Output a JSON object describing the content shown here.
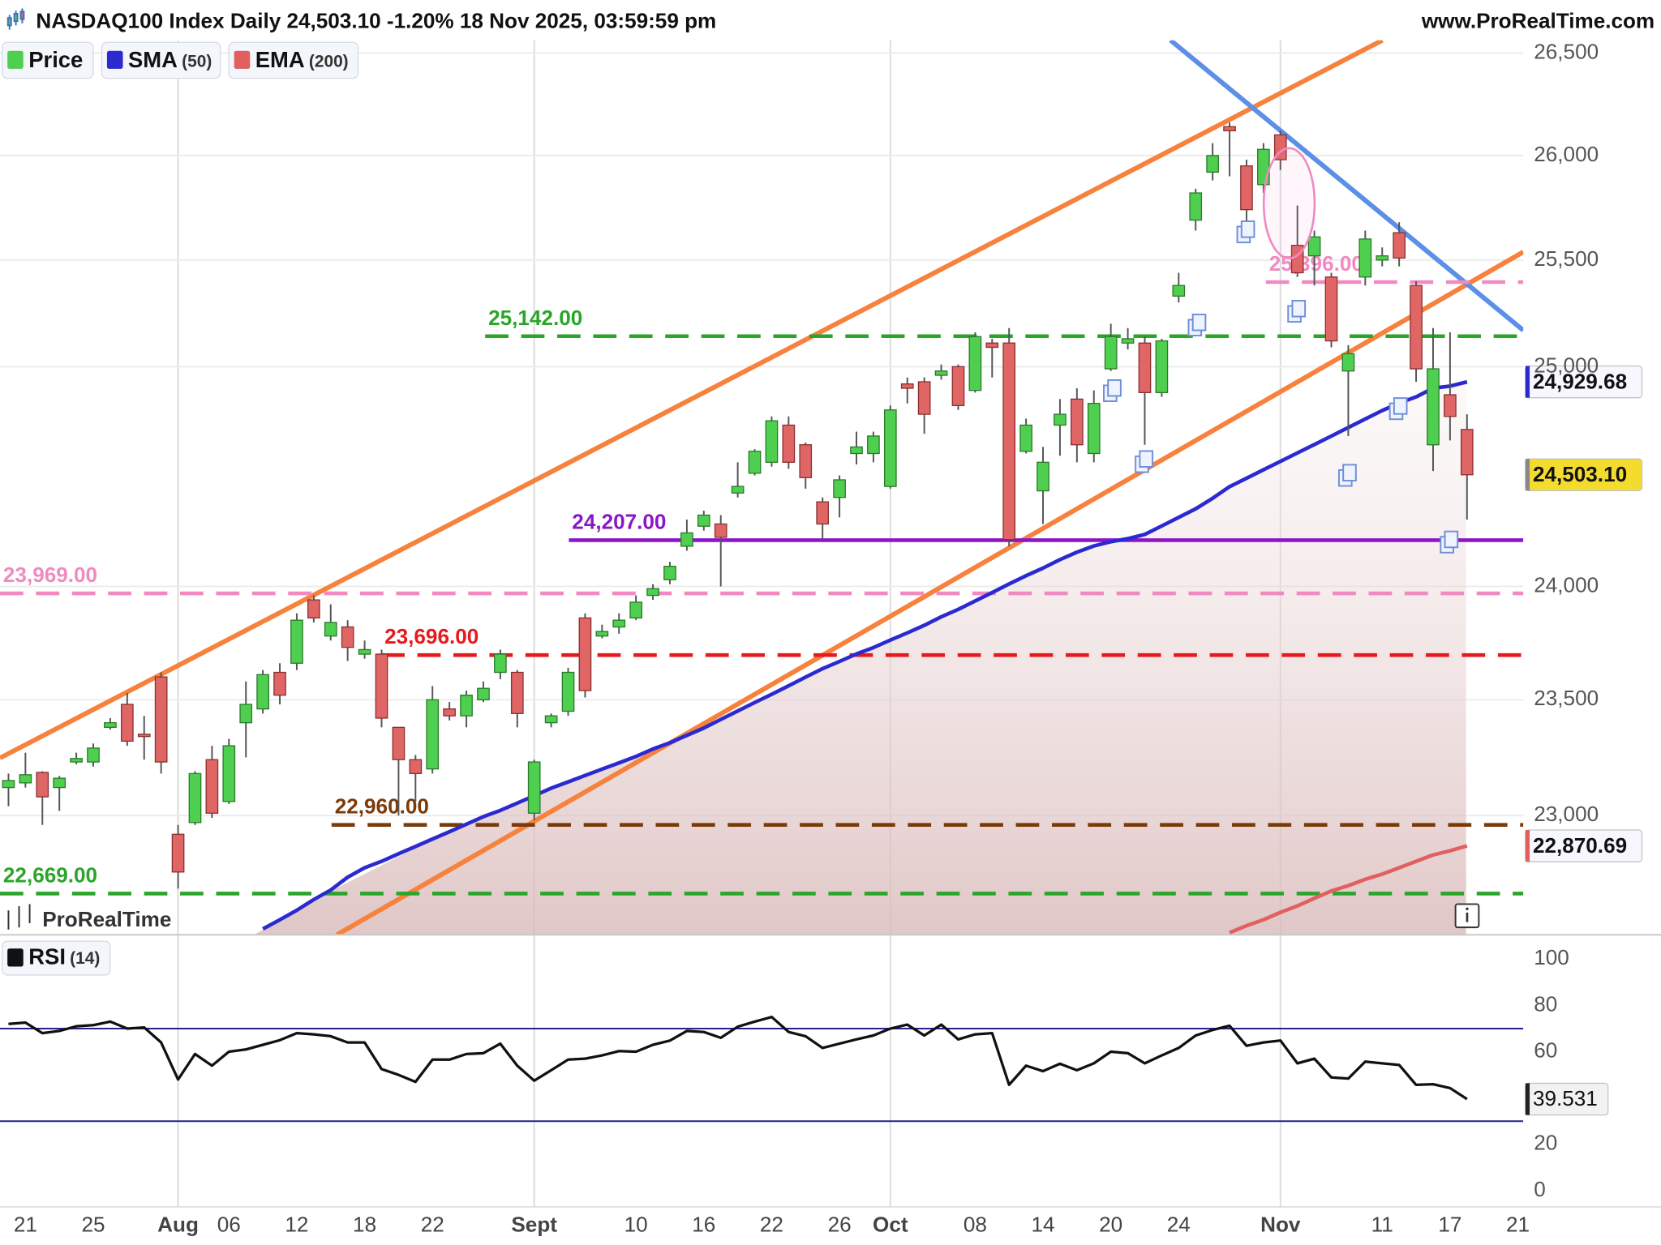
{
  "chart_data": [
    {
      "type": "candlestick",
      "title": "NASDAQ100 Index Daily 24,503.10 -1.20% 18 Nov 2025, 03:59:59 pm",
      "source": "www.ProRealTime.com",
      "watermark": "ProRealTime",
      "log": true,
      "grid": true,
      "x_grid": true,
      "categories": [
        null,
        "21",
        null,
        null,
        null,
        "25",
        null,
        null,
        null,
        null,
        "Aug",
        null,
        null,
        "06",
        null,
        null,
        null,
        "12",
        null,
        null,
        null,
        "18",
        null,
        null,
        null,
        "22",
        null,
        null,
        null,
        null,
        null,
        "Sept",
        null,
        null,
        null,
        null,
        null,
        "10",
        null,
        null,
        null,
        "16",
        null,
        null,
        null,
        "22",
        null,
        null,
        null,
        "26",
        null,
        null,
        "Oct",
        null,
        null,
        null,
        null,
        "08",
        null,
        null,
        null,
        "14",
        null,
        null,
        null,
        "20",
        null,
        null,
        null,
        "24",
        null,
        null,
        null,
        null,
        null,
        "Nov",
        null,
        null,
        null,
        null,
        null,
        "11",
        null,
        null,
        null,
        "17",
        null,
        null,
        null,
        "21"
      ],
      "ylim": [
        22496,
        26563
      ],
      "yticks": [
        {
          "value": 23000,
          "label": "23,000"
        },
        {
          "value": 23500,
          "label": "23,500"
        },
        {
          "value": 24000,
          "label": "24,000"
        },
        {
          "value": 25000,
          "label": "25,000"
        },
        {
          "value": 25500,
          "label": "25,500"
        },
        {
          "value": 26000,
          "label": "26,000"
        },
        {
          "value": 26500,
          "label": "26,500"
        }
      ],
      "levels": [
        {
          "value": 25142,
          "label": "25,142.00",
          "color": "#2aa52a",
          "style": "dashed"
        },
        {
          "value": 24207,
          "label": "24,207.00",
          "color": "#8a16c8",
          "style": "solid"
        },
        {
          "value": 23969,
          "label": "23,969.00",
          "color": "#f08ac0",
          "style": "dashed"
        },
        {
          "value": 23696,
          "label": "23,696.00",
          "color": "#e8191c",
          "style": "dashed"
        },
        {
          "value": 22960,
          "label": "22,960.00",
          "color": "#7a3a0a",
          "style": "dashed"
        },
        {
          "value": 22669,
          "label": "22,669.00",
          "color": "#2aa52a",
          "style": "dashed"
        },
        {
          "value": 25396,
          "label": "25,396.00",
          "color": "#f08ac0",
          "style": "dashed"
        }
      ],
      "series": [
        {
          "name": "Price",
          "type": "candlestick",
          "up_color": "#4fcf4f",
          "down_color": "#e06666",
          "last_label": "24,503.10",
          "open": [
            23120,
            23140,
            23185,
            23120,
            23230,
            23230,
            23380,
            23480,
            23350,
            23600,
            22920,
            22970,
            23240,
            23060,
            23400,
            23460,
            23620,
            23660,
            23940,
            23780,
            23820,
            23700,
            23700,
            23380,
            23240,
            23200,
            23460,
            23430,
            23500,
            23620,
            23620,
            23010,
            23400,
            23450,
            23860,
            23780,
            23820,
            23860,
            23960,
            24030,
            24180,
            24270,
            24280,
            24420,
            24510,
            24560,
            24730,
            24640,
            24380,
            24400,
            24600,
            24600,
            24450,
            24920,
            24930,
            24960,
            25000,
            24890,
            25110,
            25110,
            24610,
            24430,
            24730,
            24850,
            24600,
            24990,
            25110,
            25110,
            24880,
            25330,
            25690,
            25920,
            26140,
            25950,
            25860,
            26100,
            25570,
            25520,
            25420,
            24980,
            25420,
            25500,
            25630,
            25380,
            24640,
            24870,
            24710,
            null,
            null,
            null
          ],
          "high": [
            23180,
            23270,
            23190,
            23170,
            23270,
            23310,
            23420,
            23530,
            23430,
            23620,
            22960,
            23190,
            23300,
            23330,
            23580,
            23630,
            23660,
            23880,
            23960,
            23920,
            23850,
            23760,
            23720,
            23380,
            23260,
            23560,
            23490,
            23540,
            23580,
            23720,
            23630,
            23240,
            23440,
            23640,
            23880,
            23830,
            23880,
            23960,
            24010,
            24110,
            24300,
            24340,
            24320,
            24560,
            24620,
            24770,
            24770,
            24650,
            24400,
            24500,
            24700,
            24700,
            24820,
            24950,
            24950,
            25010,
            25010,
            25160,
            25130,
            25180,
            24760,
            24630,
            24850,
            24900,
            24890,
            25200,
            25180,
            25140,
            25130,
            25440,
            25840,
            26060,
            26160,
            25980,
            26060,
            26120,
            25760,
            25640,
            25440,
            25100,
            25640,
            25560,
            25680,
            25400,
            25180,
            25160,
            24780,
            null,
            null,
            null
          ],
          "low": [
            23040,
            23120,
            22960,
            23020,
            23220,
            23210,
            23370,
            23300,
            23240,
            23180,
            22690,
            22960,
            22990,
            23050,
            23250,
            23440,
            23480,
            23630,
            23840,
            23760,
            23670,
            23680,
            23380,
            23000,
            23060,
            23180,
            23410,
            23380,
            23490,
            23590,
            23380,
            22980,
            23380,
            23430,
            23510,
            23770,
            23790,
            23850,
            23940,
            24010,
            24160,
            24250,
            24000,
            24400,
            24500,
            24540,
            24530,
            24440,
            24210,
            24310,
            24550,
            24560,
            24440,
            24830,
            24690,
            24940,
            24800,
            24880,
            24950,
            24180,
            24600,
            24280,
            24590,
            24560,
            24560,
            24980,
            25080,
            24640,
            24860,
            25300,
            25640,
            25880,
            25900,
            25650,
            25820,
            25930,
            25420,
            25380,
            25090,
            24680,
            25380,
            25470,
            25470,
            24930,
            24520,
            24660,
            24300,
            null,
            null,
            null
          ],
          "close": [
            23150,
            23175,
            23080,
            23160,
            23245,
            23290,
            23400,
            23320,
            23340,
            23230,
            22760,
            23180,
            23010,
            23300,
            23480,
            23610,
            23520,
            23850,
            23860,
            23840,
            23730,
            23720,
            23420,
            23240,
            23180,
            23500,
            23430,
            23520,
            23550,
            23700,
            23440,
            23230,
            23430,
            23620,
            23540,
            23800,
            23850,
            23930,
            23990,
            24090,
            24240,
            24320,
            24220,
            24450,
            24610,
            24750,
            24560,
            24490,
            24280,
            24480,
            24630,
            24680,
            24800,
            24900,
            24780,
            24980,
            24820,
            25140,
            25090,
            24210,
            24730,
            24560,
            24780,
            24640,
            24830,
            25140,
            25130,
            24880,
            25120,
            25380,
            25820,
            26000,
            26120,
            25740,
            26030,
            25980,
            25440,
            25610,
            25120,
            25060,
            25600,
            25520,
            25510,
            24990,
            24990,
            24770,
            24503.1,
            null,
            null,
            null
          ]
        },
        {
          "name": "SMA",
          "period": "(50)",
          "type": "line",
          "color": "#2a2ad0",
          "last_label": "24,929.68",
          "values": [
            null,
            null,
            null,
            null,
            null,
            null,
            null,
            null,
            null,
            null,
            null,
            null,
            null,
            null,
            null,
            22521,
            22559,
            22599,
            22644,
            22684,
            22738,
            22778,
            22805,
            22837,
            22868,
            22900,
            22931,
            22963,
            22995,
            23022,
            23053,
            23085,
            23117,
            23144,
            23172,
            23199,
            23226,
            23254,
            23286,
            23313,
            23345,
            23377,
            23414,
            23451,
            23488,
            23524,
            23561,
            23599,
            23636,
            23668,
            23701,
            23729,
            23762,
            23794,
            23827,
            23865,
            23898,
            23935,
            23973,
            24011,
            24048,
            24082,
            24120,
            24153,
            24181,
            24200,
            24214,
            24233,
            24271,
            24310,
            24348,
            24396,
            24449,
            24487,
            24526,
            24564,
            24603,
            24641,
            24680,
            24719,
            24758,
            24797,
            24831,
            24860,
            24900,
            24910,
            24929.68,
            null,
            null,
            null
          ]
        },
        {
          "name": "EMA",
          "period": "(200)",
          "type": "line",
          "color": "#e06060",
          "last_label": "22,870.69",
          "values": [
            null,
            null,
            null,
            null,
            null,
            null,
            null,
            null,
            null,
            null,
            null,
            null,
            null,
            null,
            null,
            null,
            null,
            null,
            null,
            null,
            null,
            null,
            null,
            null,
            null,
            null,
            null,
            null,
            null,
            null,
            null,
            null,
            null,
            null,
            null,
            null,
            null,
            null,
            null,
            null,
            null,
            null,
            null,
            null,
            null,
            null,
            null,
            null,
            null,
            null,
            null,
            null,
            null,
            null,
            null,
            null,
            null,
            null,
            null,
            null,
            null,
            null,
            null,
            null,
            null,
            null,
            null,
            null,
            null,
            null,
            null,
            null,
            22505,
            22534,
            22559,
            22590,
            22617,
            22649,
            22680,
            22702,
            22729,
            22751,
            22778,
            22805,
            22832,
            22850,
            22870.69,
            null,
            null,
            null
          ]
        }
      ]
    },
    {
      "type": "line",
      "name": "RSI",
      "period": "(14)",
      "color": "#111111",
      "last_label": "39.531",
      "ylim": [
        -7,
        105
      ],
      "yticks": [
        0,
        20,
        60,
        80,
        100
      ],
      "hlines": [
        30,
        70
      ],
      "hline_color": "#22228a",
      "values": [
        72,
        72.6,
        68,
        69,
        71,
        71.5,
        73,
        70,
        70.5,
        64,
        48,
        59,
        54,
        60,
        61,
        63,
        65,
        68,
        67.5,
        66.7,
        64,
        64,
        52.5,
        50,
        47,
        56.6,
        56.6,
        59,
        59.4,
        63.5,
        54,
        47.5,
        52,
        56.6,
        57,
        58.4,
        60.3,
        60,
        63,
        64.8,
        69,
        68.5,
        66,
        70.8,
        73,
        75,
        68.5,
        66.7,
        61.6,
        63.5,
        65.3,
        67,
        70,
        71.7,
        67,
        71.7,
        65.3,
        67.5,
        68,
        45.7,
        54,
        51.6,
        54.8,
        52,
        55,
        60,
        59.4,
        55,
        58.4,
        61.6,
        67,
        69.4,
        71.2,
        62.6,
        64,
        64.8,
        55,
        57,
        48.9,
        48.4,
        55.7,
        55,
        54.3,
        45.7,
        46,
        44.3,
        39.531,
        null,
        null,
        null
      ]
    }
  ]
}
